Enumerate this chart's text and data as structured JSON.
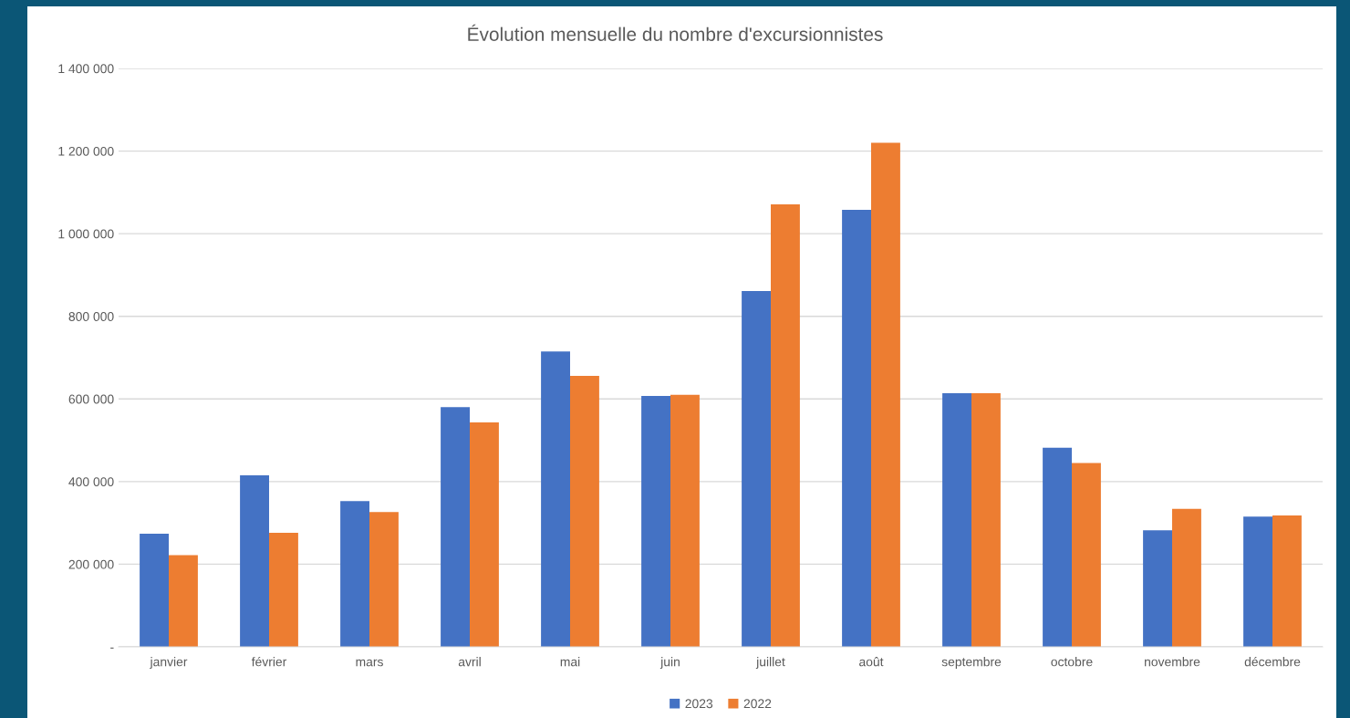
{
  "chart_data": {
    "type": "bar",
    "title": "Évolution mensuelle du nombre d'excursionnistes",
    "categories": [
      "janvier",
      "février",
      "mars",
      "avril",
      "mai",
      "juin",
      "juillet",
      "août",
      "septembre",
      "octobre",
      "novembre",
      "décembre"
    ],
    "series": [
      {
        "name": "2023",
        "color": "#4472c4",
        "values": [
          274000,
          415000,
          353000,
          580000,
          715000,
          607000,
          861000,
          1058000,
          614000,
          482000,
          282000,
          315000
        ]
      },
      {
        "name": "2022",
        "color": "#ed7d31",
        "values": [
          222000,
          276000,
          326000,
          543000,
          656000,
          610000,
          1071000,
          1220000,
          614000,
          445000,
          334000,
          318000
        ]
      }
    ],
    "ylim": [
      0,
      1400000
    ],
    "yticks": [
      {
        "value": 0,
        "label": "-"
      },
      {
        "value": 200000,
        "label": "200 000"
      },
      {
        "value": 400000,
        "label": "400 000"
      },
      {
        "value": 600000,
        "label": "600 000"
      },
      {
        "value": 800000,
        "label": "800 000"
      },
      {
        "value": 1000000,
        "label": "1 000 000"
      },
      {
        "value": 1200000,
        "label": "1 200 000"
      },
      {
        "value": 1400000,
        "label": "1 400 000"
      }
    ],
    "grid": "y",
    "legend": "bottom"
  }
}
